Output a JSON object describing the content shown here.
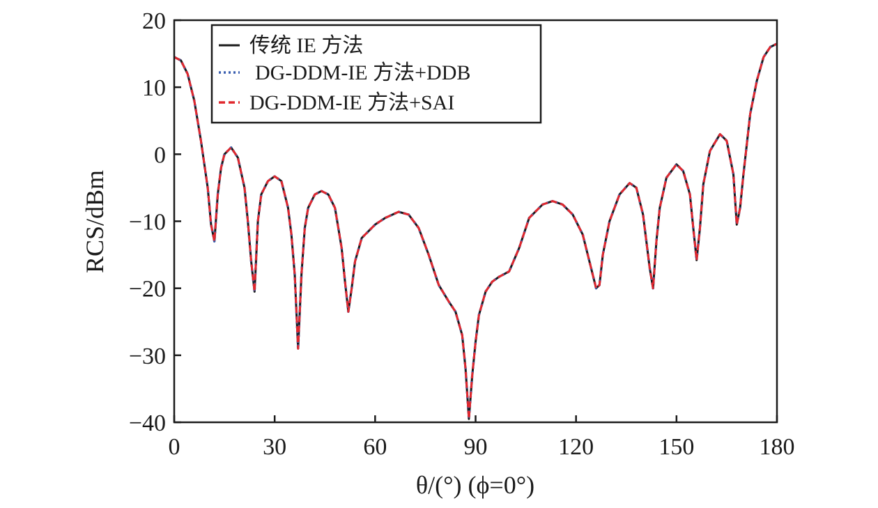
{
  "chart_data": {
    "type": "line",
    "xlabel": "θ/(°) (ϕ=0°)",
    "ylabel": "RCS/dBm",
    "xlim": [
      0,
      180
    ],
    "ylim": [
      -40,
      20
    ],
    "xticks": [
      0,
      30,
      60,
      90,
      120,
      150,
      180
    ],
    "yticks": [
      20,
      10,
      0,
      -10,
      -20,
      -30,
      -40
    ],
    "xtick_labels": [
      "0",
      "30",
      "60",
      "90",
      "120",
      "150",
      "180"
    ],
    "ytick_labels": [
      "20",
      "10",
      "0",
      "−10",
      "−20",
      "−30",
      "−40"
    ],
    "grid": false,
    "legend": "top-left",
    "series": [
      {
        "name": "传统 IE 方法",
        "style": "solid",
        "color": "#1a1a1a"
      },
      {
        "name": "DG-DDM-IE 方法+DDB",
        "style": "dotted",
        "color": "#3a5fb0"
      },
      {
        "name": "DG-DDM-IE 方法+SAI",
        "style": "dashed",
        "color": "#e0282e"
      }
    ],
    "x": [
      0,
      2,
      4,
      6,
      8,
      10,
      11,
      12,
      13,
      14,
      15,
      17,
      19,
      21,
      22,
      23,
      24,
      25,
      26,
      28,
      30,
      32,
      34,
      35,
      36,
      37,
      38,
      39,
      40,
      42,
      44,
      46,
      48,
      50,
      51,
      52,
      53,
      54,
      56,
      58,
      60,
      63,
      67,
      70,
      73,
      76,
      79,
      82,
      84,
      86,
      87,
      88,
      89,
      90,
      91,
      93,
      95,
      97,
      100,
      103,
      106,
      110,
      113,
      116,
      119,
      122,
      124,
      126,
      127,
      128,
      130,
      133,
      136,
      138,
      140,
      141,
      142,
      143,
      144,
      145,
      147,
      150,
      152,
      154,
      155,
      156,
      157,
      158,
      160,
      163,
      165,
      167,
      168,
      169,
      170,
      172,
      174,
      176,
      178,
      180
    ],
    "y": [
      14.5,
      14,
      12,
      8,
      2,
      -5,
      -10.5,
      -13,
      -6,
      -2,
      0,
      1,
      -0.5,
      -5,
      -10,
      -16,
      -20.5,
      -10,
      -6,
      -4,
      -3.3,
      -4,
      -8,
      -12,
      -18,
      -29,
      -18,
      -11,
      -8,
      -6,
      -5.5,
      -6,
      -8,
      -14,
      -19,
      -23.5,
      -20,
      -16,
      -12.5,
      -11.5,
      -10.5,
      -9.5,
      -8.6,
      -9,
      -11,
      -15,
      -19.5,
      -22,
      -23.5,
      -27,
      -32,
      -39.5,
      -33,
      -28,
      -24,
      -20.5,
      -19,
      -18.3,
      -17.5,
      -14,
      -9.5,
      -7.5,
      -7,
      -7.5,
      -9,
      -12,
      -16,
      -20,
      -19.5,
      -15,
      -10,
      -6,
      -4.3,
      -5,
      -9,
      -13,
      -17,
      -20,
      -13,
      -8,
      -3.5,
      -1.5,
      -2.5,
      -6,
      -11,
      -15.8,
      -11,
      -4.5,
      0.5,
      3,
      2,
      -3,
      -10.5,
      -8,
      -3,
      6,
      11,
      14.5,
      16,
      16.5
    ]
  }
}
